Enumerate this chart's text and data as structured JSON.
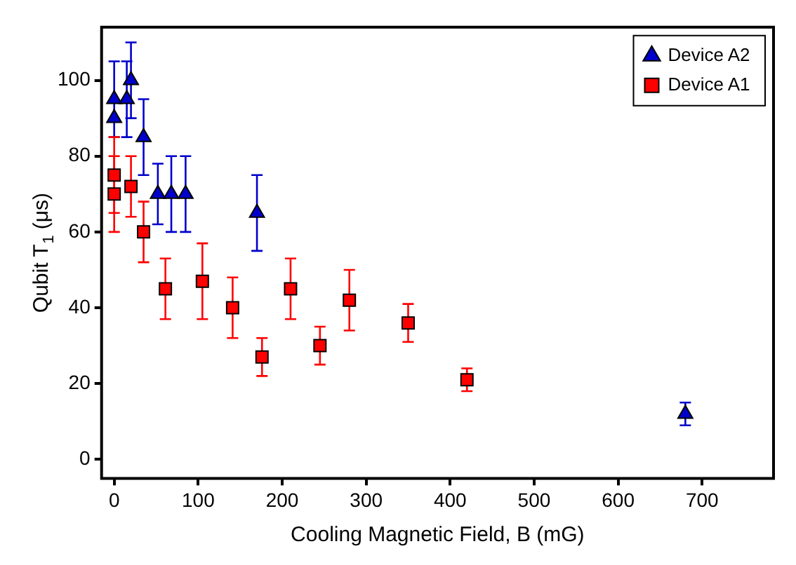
{
  "chart_data": {
    "type": "scatter",
    "xlabel": "Cooling Magnetic Field, B (mG)",
    "ylabel": "Qubit T$_{1}$ (μs)",
    "xlim": [
      -15,
      785
    ],
    "xticks": [
      0,
      100,
      200,
      300,
      400,
      500,
      600,
      700
    ],
    "ylim": [
      -5,
      114
    ],
    "yticks": [
      0,
      20,
      40,
      60,
      80,
      100
    ],
    "grid": false,
    "legend": "top right",
    "series": [
      {
        "name": "Device A2",
        "color": "#0000cc",
        "marker": "triangle",
        "x": [
          0,
          0,
          15,
          20,
          35,
          52,
          68,
          85,
          170,
          680
        ],
        "values": [
          90,
          95,
          95,
          100,
          85,
          70,
          70,
          70,
          65,
          12
        ],
        "errors": [
          null,
          10,
          10,
          10,
          10,
          8,
          10,
          10,
          10,
          3
        ]
      },
      {
        "name": "Device A1",
        "color": "#ff0000",
        "marker": "square",
        "x": [
          0,
          0,
          20,
          35,
          61,
          105,
          141,
          176,
          210,
          245,
          280,
          350,
          420
        ],
        "values": [
          75,
          70,
          72,
          60,
          45,
          47,
          40,
          27,
          45,
          30,
          42,
          36,
          21
        ],
        "errors": [
          10,
          10,
          8,
          8,
          8,
          10,
          8,
          5,
          8,
          5,
          8,
          5,
          3
        ]
      }
    ]
  }
}
